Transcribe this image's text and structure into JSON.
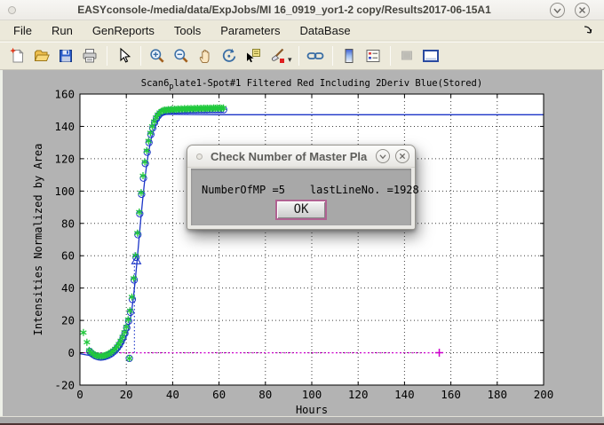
{
  "window": {
    "title": "EASYconsole-/media/data/ExpJobs/MI 16_0919_yor1-2 copy/Results2017-06-15A1"
  },
  "menu": {
    "items": [
      "File",
      "Run",
      "GenReports",
      "Tools",
      "Parameters",
      "DataBase"
    ]
  },
  "toolbar": {
    "icons": [
      "new-file",
      "open-file",
      "save-figure",
      "print-figure",
      "edit-plot-cursor",
      "zoom-in",
      "zoom-out",
      "pan-hand",
      "rotate-3d",
      "data-cursor",
      "brush-data",
      "link-plot",
      "insert-colorbar",
      "insert-legend",
      "hide-plot-tools",
      "show-plot-tools"
    ]
  },
  "dialog": {
    "title": "Check Number of Master Pla",
    "info_left": "NumberOfMP =5",
    "info_right": "lastLineNo. =1928",
    "ok_label": "OK"
  },
  "chart_data": {
    "type": "line",
    "title_parts": {
      "main": "Scan6",
      "sub": "p",
      "rest": "late1-Spot#1 Filtered Red Including 2Deriv Blue(Stored)"
    },
    "xlabel": "Hours",
    "ylabel": "Intensities Normalized by Area",
    "xlim": [
      0,
      200
    ],
    "ylim": [
      -20,
      160
    ],
    "xticks": [
      0,
      20,
      40,
      60,
      80,
      100,
      120,
      140,
      160,
      180,
      200
    ],
    "yticks": [
      -20,
      0,
      20,
      40,
      60,
      80,
      100,
      120,
      140,
      160
    ],
    "grid": true,
    "legend": "none",
    "colors": {
      "raw_green": "#21c93c",
      "filtered_blue": "#1b35c8",
      "baseline_magenta": "#cc00cc",
      "axis": "#000000",
      "figure_bg": "#b3b3b3",
      "plot_bg": "#ffffff"
    },
    "series": [
      {
        "name": "baseline-zero",
        "type": "line",
        "style": "dotted",
        "color": "#cc00cc",
        "points": [
          [
            0,
            0
          ],
          [
            155,
            0
          ]
        ]
      },
      {
        "name": "baseline-end-plus",
        "marker": "plus",
        "color": "#cc00cc",
        "points": [
          [
            155,
            0
          ]
        ]
      },
      {
        "name": "deriv-vline",
        "type": "vline",
        "color": "#1b35c8",
        "x": 23.5,
        "y0": 0,
        "y1": 62
      },
      {
        "name": "fit-and-stored-level",
        "type": "line",
        "color": "#1b35c8",
        "points": [
          [
            0,
            -0.6
          ],
          [
            2,
            -1.1
          ],
          [
            4,
            -1.6
          ],
          [
            6,
            -2.1
          ],
          [
            8,
            -2.4
          ],
          [
            10,
            -2.4
          ],
          [
            12,
            -2
          ],
          [
            13,
            -1.6
          ],
          [
            14,
            -1
          ],
          [
            15,
            -0.2
          ],
          [
            16,
            0.9
          ],
          [
            17,
            2.4
          ],
          [
            18,
            4.4
          ],
          [
            19,
            7
          ],
          [
            20,
            10.5
          ],
          [
            21,
            15.5
          ],
          [
            22,
            23
          ],
          [
            23,
            33
          ],
          [
            23.8,
            44
          ],
          [
            24.6,
            56
          ],
          [
            25.4,
            69
          ],
          [
            26.2,
            82
          ],
          [
            27,
            94
          ],
          [
            27.8,
            105
          ],
          [
            28.6,
            114
          ],
          [
            29.4,
            122
          ],
          [
            30.2,
            128.5
          ],
          [
            31,
            133.8
          ],
          [
            31.8,
            137.9
          ],
          [
            32.6,
            141
          ],
          [
            33.4,
            143.4
          ],
          [
            34.2,
            145.1
          ],
          [
            35,
            146.2
          ],
          [
            36,
            147
          ],
          [
            37,
            147.4
          ],
          [
            38,
            147.5
          ],
          [
            40,
            147.5
          ],
          [
            45,
            147.4
          ],
          [
            50,
            147.3
          ],
          [
            60,
            147.2
          ],
          [
            200,
            147.2
          ]
        ]
      },
      {
        "name": "filtered-circles",
        "marker": "circle",
        "color": "#1b35c8",
        "points": [
          [
            4.2,
            0.8
          ],
          [
            5,
            -0.4
          ],
          [
            5.8,
            -1.2
          ],
          [
            6.6,
            -1.9
          ],
          [
            7.4,
            -2.3
          ],
          [
            8.2,
            -2.6
          ],
          [
            9,
            -2.7
          ],
          [
            9.8,
            -2.6
          ],
          [
            10.6,
            -2.4
          ],
          [
            11.4,
            -2
          ],
          [
            12.2,
            -1.6
          ],
          [
            13,
            -1
          ],
          [
            13.8,
            -0.2
          ],
          [
            14.6,
            0.7
          ],
          [
            15.4,
            1.8
          ],
          [
            16.2,
            3.2
          ],
          [
            17,
            4.8
          ],
          [
            17.8,
            6.8
          ],
          [
            18.6,
            9.2
          ],
          [
            19.4,
            12
          ],
          [
            20.2,
            15.4
          ],
          [
            21,
            19.5
          ],
          [
            21.3,
            -3.5
          ],
          [
            21.8,
            25
          ],
          [
            22.6,
            33
          ],
          [
            23.4,
            45
          ],
          [
            24.2,
            59
          ],
          [
            25,
            73
          ],
          [
            25.8,
            86
          ],
          [
            26.6,
            98
          ],
          [
            27.4,
            108
          ],
          [
            28.2,
            117
          ],
          [
            29,
            124
          ],
          [
            29.8,
            130
          ],
          [
            30.6,
            135
          ],
          [
            31.4,
            139
          ],
          [
            32.2,
            142.3
          ],
          [
            33,
            144.8
          ],
          [
            33.8,
            146.6
          ],
          [
            34.6,
            147.9
          ],
          [
            35.4,
            148.7
          ],
          [
            36.2,
            149.2
          ],
          [
            37,
            149.5
          ],
          [
            38,
            149.7
          ],
          [
            39.2,
            149.8
          ],
          [
            40.4,
            149.8
          ],
          [
            41.6,
            149.9
          ],
          [
            42.8,
            149.9
          ],
          [
            44,
            150
          ],
          [
            45.2,
            150
          ],
          [
            46.4,
            150
          ],
          [
            47.6,
            150.1
          ],
          [
            48.8,
            150.1
          ],
          [
            50,
            150.1
          ],
          [
            51.2,
            150.2
          ],
          [
            52.4,
            150.2
          ],
          [
            53.6,
            150.2
          ],
          [
            54.8,
            150.2
          ],
          [
            56,
            150.3
          ],
          [
            57.2,
            150.3
          ],
          [
            58.4,
            150.3
          ],
          [
            59.6,
            150.3
          ],
          [
            60.8,
            150.3
          ],
          [
            62,
            150.3
          ]
        ]
      },
      {
        "name": "raw-asterisks",
        "marker": "asterisk",
        "color": "#21c93c",
        "points": [
          [
            1.5,
            12.5
          ],
          [
            3,
            6.5
          ],
          [
            4,
            1.5
          ],
          [
            4.8,
            0.3
          ],
          [
            5.6,
            -0.6
          ],
          [
            6.4,
            -1.3
          ],
          [
            7.2,
            -1.8
          ],
          [
            8,
            -2
          ],
          [
            8.8,
            -2.1
          ],
          [
            9.6,
            -2
          ],
          [
            10.4,
            -1.8
          ],
          [
            11.2,
            -1.4
          ],
          [
            12,
            -1
          ],
          [
            12.8,
            -0.4
          ],
          [
            13.6,
            0.4
          ],
          [
            14.4,
            1.3
          ],
          [
            15.2,
            2.4
          ],
          [
            16,
            3.8
          ],
          [
            16.8,
            5.4
          ],
          [
            17.6,
            7.4
          ],
          [
            18.4,
            9.8
          ],
          [
            19.2,
            12.6
          ],
          [
            20,
            16
          ],
          [
            20.8,
            20.5
          ],
          [
            21.3,
            -3.5
          ],
          [
            21.6,
            26
          ],
          [
            22.4,
            34.5
          ],
          [
            23.2,
            46
          ],
          [
            24,
            60
          ],
          [
            24.8,
            74
          ],
          [
            25.6,
            87
          ],
          [
            26.4,
            99
          ],
          [
            27.2,
            109.5
          ],
          [
            28,
            118
          ],
          [
            28.8,
            125
          ],
          [
            29.6,
            131
          ],
          [
            30.4,
            136
          ],
          [
            31.2,
            140
          ],
          [
            32,
            143
          ],
          [
            32.8,
            145.5
          ],
          [
            33.6,
            147.3
          ],
          [
            34.4,
            148.6
          ],
          [
            35.2,
            149.4
          ],
          [
            36,
            149.9
          ],
          [
            36.7,
            150.2
          ],
          [
            37.4,
            150
          ],
          [
            38.1,
            150.4
          ],
          [
            38.8,
            150.2
          ],
          [
            39.5,
            150.6
          ],
          [
            40.2,
            150.3
          ],
          [
            40.9,
            150.7
          ],
          [
            41.6,
            150.4
          ],
          [
            42.3,
            150.8
          ],
          [
            43,
            150.5
          ],
          [
            43.7,
            150.9
          ],
          [
            44.4,
            150.6
          ],
          [
            45.1,
            151
          ],
          [
            45.8,
            150.7
          ],
          [
            46.5,
            151
          ],
          [
            47.2,
            150.8
          ],
          [
            47.9,
            151.1
          ],
          [
            48.6,
            150.8
          ],
          [
            49.3,
            151.1
          ],
          [
            50,
            150.9
          ],
          [
            50.7,
            151.2
          ],
          [
            51.4,
            150.9
          ],
          [
            52.1,
            151.2
          ],
          [
            52.8,
            151
          ],
          [
            53.5,
            151.3
          ],
          [
            54.2,
            151
          ],
          [
            54.9,
            151.3
          ],
          [
            55.6,
            151.1
          ],
          [
            56.3,
            151.3
          ],
          [
            57,
            151.1
          ],
          [
            57.7,
            151.4
          ],
          [
            58.4,
            151.2
          ],
          [
            59.1,
            151.4
          ],
          [
            59.8,
            151.2
          ],
          [
            60.5,
            151.4
          ],
          [
            61.2,
            151.2
          ],
          [
            61.9,
            151.4
          ]
        ]
      },
      {
        "name": "deriv-triangle",
        "marker": "triangle",
        "color": "#1b35c8",
        "points": [
          [
            24.3,
            57
          ]
        ]
      }
    ]
  }
}
